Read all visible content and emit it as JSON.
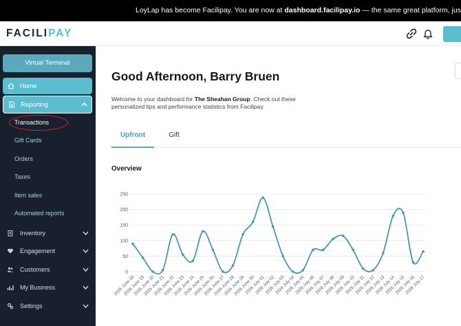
{
  "banner": {
    "prefix": "LoyLap has become Facilipay. You are now at ",
    "domain": "dashboard.facilipay.io",
    "suffix": " — the same great platform, just with a new name."
  },
  "header": {
    "logo_part1": "FACILI",
    "logo_part2": "PAY",
    "icons": [
      "link-icon",
      "bell-icon"
    ]
  },
  "sidebar": {
    "virtual_terminal": "Virtual Terminal",
    "home": "Home",
    "reporting": "Reporting",
    "reporting_subitems": [
      "Transactions",
      "Gift Cards",
      "Orders",
      "Taxes",
      "Item sales",
      "Automated reports"
    ],
    "sections": [
      "Inventory",
      "Engagement",
      "Customers",
      "My Business",
      "Settings"
    ]
  },
  "main": {
    "greeting": "Good Afternoon, Barry Bruen",
    "welcome_prefix": "Welcome to your dashboard for ",
    "company": "The Sheahan Group",
    "welcome_suffix": ". Check out these personalized tips and performance statistics from Facilipay.",
    "tabs": [
      "Upfront",
      "Gift"
    ],
    "overview_title": "Overview"
  },
  "colors": {
    "accent": "#5bbecf",
    "line": "#4a97ad",
    "sidebar_bg": "#17202c",
    "annotation": "#d8262c"
  },
  "chart_data": {
    "type": "line",
    "title": "",
    "xlabel": "",
    "ylabel": "",
    "ylim": [
      0,
      250
    ],
    "yticks": [
      0,
      50,
      100,
      150,
      200,
      250
    ],
    "grid": true,
    "x": [
      "2026 June 18",
      "2026 June 19",
      "2026 June 20",
      "2026 June 21",
      "2026 June 22",
      "2026 June 23",
      "2026 June 24",
      "2026 June 25",
      "2026 June 26",
      "2026 June 27",
      "2026 June 28",
      "2026 June 29",
      "2026 June 30",
      "2026 July 01",
      "2026 July 02",
      "2026 July 03",
      "2026 July 04",
      "2026 July 05",
      "2026 July 06",
      "2026 July 07",
      "2026 July 08",
      "2026 July 09",
      "2026 July 10",
      "2026 July 11",
      "2026 July 12",
      "2026 July 13",
      "2026 July 14",
      "2026 July 15",
      "2026 July 16",
      "2026 July 17"
    ],
    "series": [
      {
        "values": [
          90,
          45,
          0,
          5,
          120,
          55,
          35,
          130,
          70,
          0,
          20,
          120,
          160,
          238,
          145,
          50,
          0,
          5,
          70,
          70,
          105,
          115,
          70,
          10,
          5,
          60,
          180,
          190,
          30,
          65
        ]
      }
    ]
  }
}
